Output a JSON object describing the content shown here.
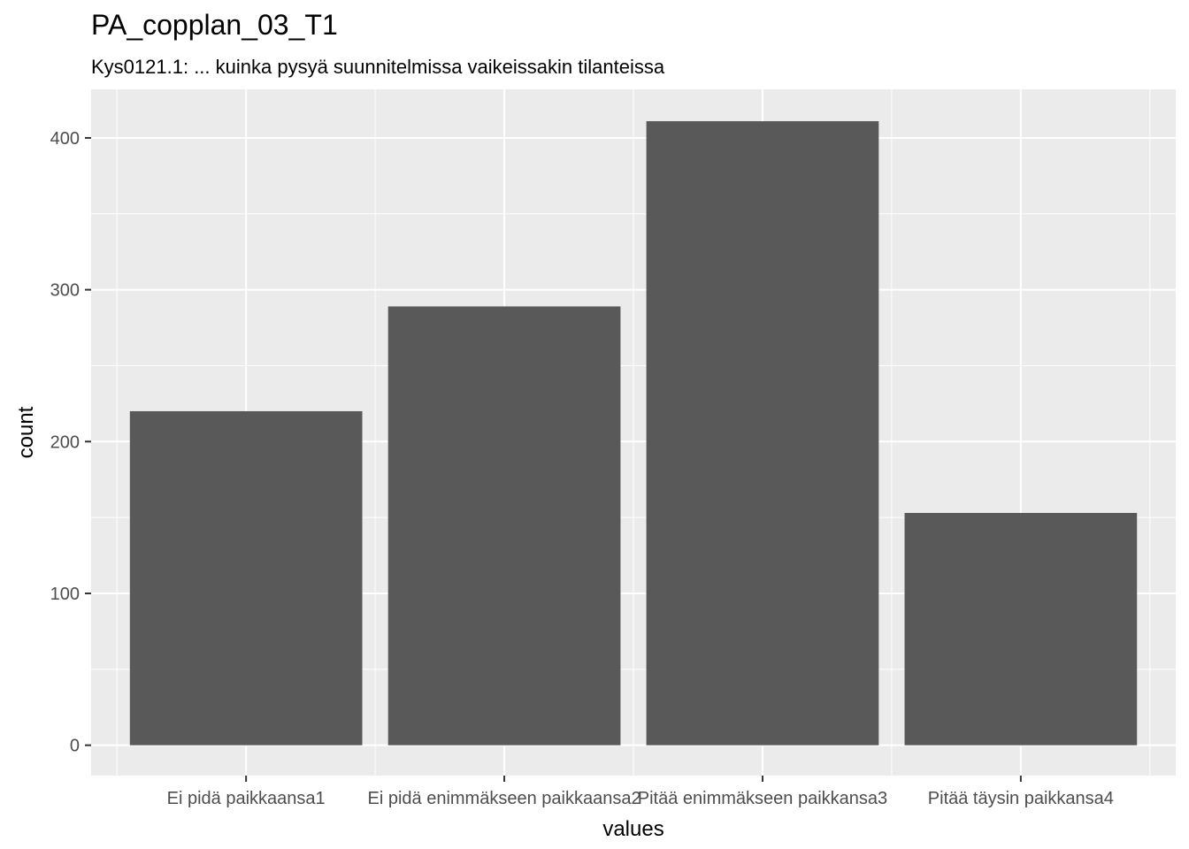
{
  "chart_data": {
    "type": "bar",
    "title": "PA_copplan_03_T1",
    "subtitle": "Kys0121.1: ... kuinka pysyä suunnitelmissa vaikeissakin tilanteissa",
    "xlabel": "values",
    "ylabel": "count",
    "categories": [
      "Ei pidä paikkaansa1",
      "Ei pidä enimmäkseen paikkaansa2",
      "Pitää enimmäkseen paikkansa3",
      "Pitää täysin paikkansa4"
    ],
    "values": [
      220,
      289,
      411,
      153
    ],
    "ylim": [
      -20,
      432
    ],
    "yticks": [
      0,
      100,
      200,
      300,
      400
    ],
    "grid": true,
    "colors": {
      "bar": "#595959",
      "panel": "#ebebeb",
      "grid": "#ffffff",
      "tick_label": "#4d4d4d"
    }
  }
}
